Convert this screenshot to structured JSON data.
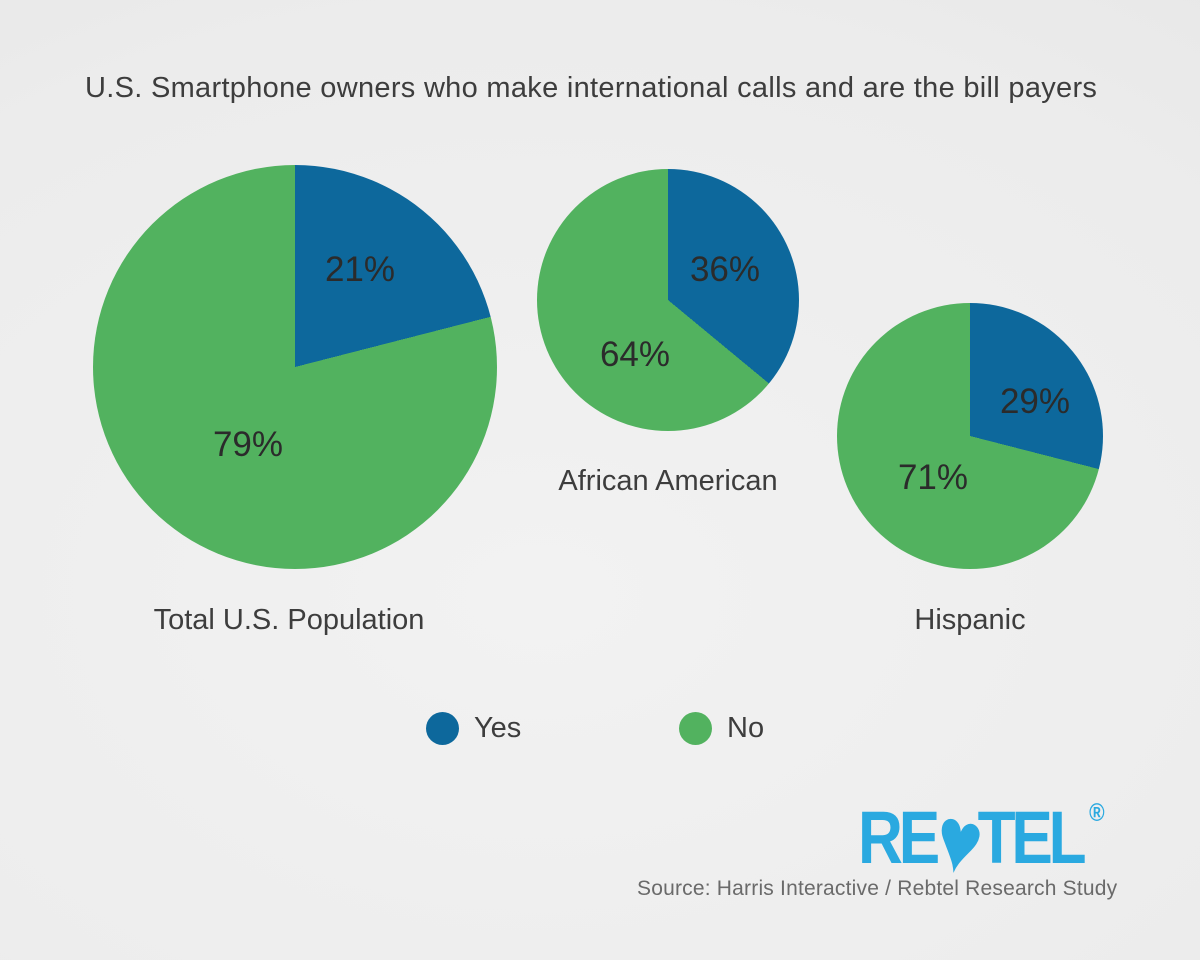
{
  "title": "U.S. Smartphone owners who make international calls and are the bill payers",
  "chart_data": {
    "type": "pie",
    "title": "U.S. Smartphone owners who make international calls and are the bill payers",
    "series_labels": [
      "Yes",
      "No"
    ],
    "colors": {
      "yes": "#0d689c",
      "no": "#52b25f"
    },
    "legend_position": "bottom-center",
    "pies": [
      {
        "category": "Total U.S. Population",
        "yes_pct": 21,
        "no_pct": 79,
        "yes_text": "21%",
        "no_text": "79%"
      },
      {
        "category": "African American",
        "yes_pct": 36,
        "no_pct": 64,
        "yes_text": "36%",
        "no_text": "64%"
      },
      {
        "category": "Hispanic",
        "yes_pct": 29,
        "no_pct": 71,
        "yes_text": "29%",
        "no_text": "71%"
      }
    ],
    "legend": [
      {
        "label": "Yes",
        "color": "#0d689c"
      },
      {
        "label": "No",
        "color": "#52b25f"
      }
    ],
    "slice_start": "top, clockwise",
    "notes": "pie diameters differ: Total U.S. Population largest, African American and Hispanic smaller"
  },
  "logo": {
    "left": "RE",
    "heart": "♥",
    "right": "TEL",
    "registered": "®",
    "color": "#2aa9e0"
  },
  "source": {
    "text": "Source: Harris Interactive / Rebtel Research Study"
  }
}
